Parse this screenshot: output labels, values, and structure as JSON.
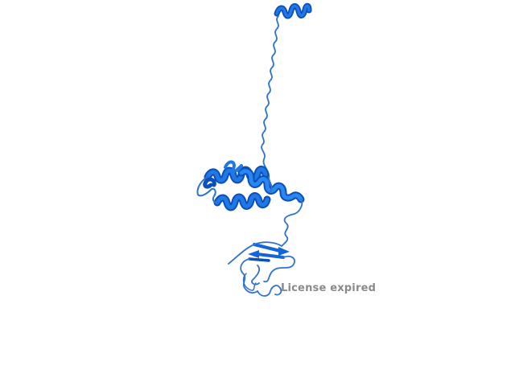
{
  "viewer": {
    "watermark_text": "License expired",
    "background_color": "#ffffff",
    "structure_color": "#1565d8",
    "structure_dark": "#0b4fb8",
    "loop_color": "#2f72cf",
    "watermark_color": "#8a8a8a"
  }
}
